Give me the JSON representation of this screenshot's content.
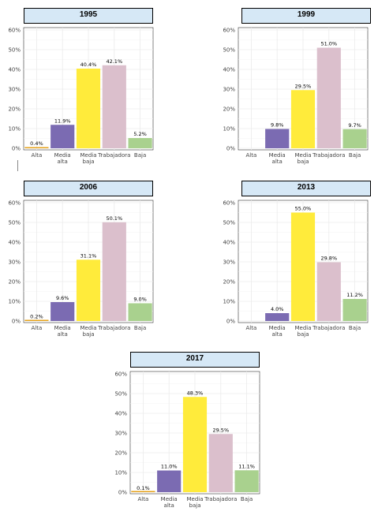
{
  "colors": {
    "Alta": "#e6a21a",
    "Media alta": "#7b6bb2",
    "Media baja": "#ffeb3b",
    "Trabajadora": "#dbbfcc",
    "Baja": "#a9d18e",
    "title_bg": "#d6e8f6",
    "grid": "#ebebeb"
  },
  "chart_data": [
    {
      "type": "bar",
      "title": "1995",
      "categories": [
        "Alta",
        "Media alta",
        "Media baja",
        "Trabajadora",
        "Baja"
      ],
      "values": [
        0.4,
        11.9,
        40.4,
        42.1,
        5.2
      ],
      "labels": [
        "0.4%",
        "11.9%",
        "40.4%",
        "42.1%",
        "5.2%"
      ],
      "yticks": [
        "0%",
        "10%",
        "20%",
        "30%",
        "40%",
        "50%",
        "60%"
      ],
      "ylim": [
        0,
        60
      ],
      "grid": true,
      "legend": "none"
    },
    {
      "type": "bar",
      "title": "1999",
      "categories": [
        "Alta",
        "Media alta",
        "Media baja",
        "Trabajadora",
        "Baja"
      ],
      "values": [
        null,
        9.8,
        29.5,
        51.0,
        9.7
      ],
      "labels": [
        "",
        "9.8%",
        "29.5%",
        "51.0%",
        "9.7%"
      ],
      "yticks": [
        "0%",
        "10%",
        "20%",
        "30%",
        "40%",
        "50%",
        "60%"
      ],
      "ylim": [
        0,
        60
      ],
      "grid": true,
      "legend": "none"
    },
    {
      "type": "bar",
      "title": "2006",
      "categories": [
        "Alta",
        "Media alta",
        "Media baja",
        "Trabajadora",
        "Baja"
      ],
      "values": [
        0.2,
        9.6,
        31.1,
        50.1,
        9.0
      ],
      "labels": [
        "0.2%",
        "9.6%",
        "31.1%",
        "50.1%",
        "9.0%"
      ],
      "yticks": [
        "0%",
        "10%",
        "20%",
        "30%",
        "40%",
        "50%",
        "60%"
      ],
      "ylim": [
        0,
        60
      ],
      "grid": true,
      "legend": "none"
    },
    {
      "type": "bar",
      "title": "2013",
      "categories": [
        "Alta",
        "Media alta",
        "Media baja",
        "Trabajadora",
        "Baja"
      ],
      "values": [
        null,
        4.0,
        55.0,
        29.8,
        11.2
      ],
      "labels": [
        "",
        "4.0%",
        "55.0%",
        "29.8%",
        "11.2%"
      ],
      "yticks": [
        "0%",
        "10%",
        "20%",
        "30%",
        "40%",
        "50%",
        "60%"
      ],
      "ylim": [
        0,
        60
      ],
      "grid": true,
      "legend": "none"
    },
    {
      "type": "bar",
      "title": "2017",
      "categories": [
        "Alta",
        "Media alta",
        "Media baja",
        "Trabajadora",
        "Baja"
      ],
      "values": [
        0.1,
        11.0,
        48.3,
        29.5,
        11.1
      ],
      "labels": [
        "0.1%",
        "11.0%",
        "48.3%",
        "29.5%",
        "11.1%"
      ],
      "yticks": [
        "0%",
        "10%",
        "20%",
        "30%",
        "40%",
        "50%",
        "60%"
      ],
      "ylim": [
        0,
        60
      ],
      "grid": true,
      "legend": "none"
    }
  ]
}
